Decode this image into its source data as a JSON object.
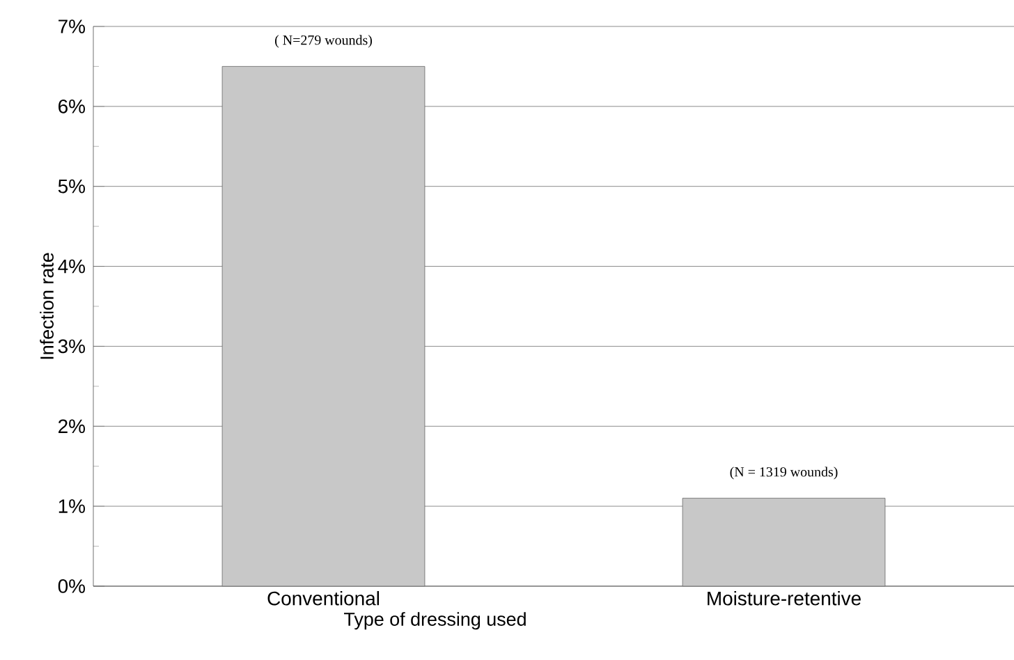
{
  "chart_data": {
    "type": "bar",
    "categories": [
      "Conventional",
      "Moisture-retentive"
    ],
    "values": [
      6.5,
      1.1
    ],
    "color": "#c8c8c8",
    "xlabel": "Type of dressing used",
    "ylabel": "Infection rate",
    "ylim": [
      0,
      7
    ],
    "yticks": [
      {
        "value": 0,
        "label": "0%"
      },
      {
        "value": 1,
        "label": "1%"
      },
      {
        "value": 2,
        "label": "2%"
      },
      {
        "value": 3,
        "label": "3%"
      },
      {
        "value": 4,
        "label": "4%"
      },
      {
        "value": 5,
        "label": "5%"
      },
      {
        "value": 6,
        "label": "6%"
      },
      {
        "value": 7,
        "label": "7%"
      }
    ],
    "grid": "y",
    "annotations": [
      {
        "text": "( N=279 wounds)",
        "x": "Conventional",
        "y": 6.5
      },
      {
        "text": "(N = 1319 wounds)",
        "x": "Moisture-retentive",
        "y": 1.1
      }
    ]
  }
}
